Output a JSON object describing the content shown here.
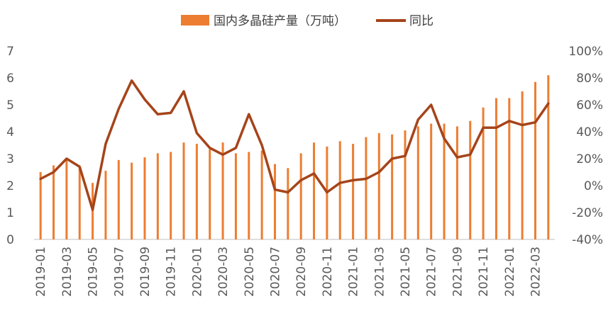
{
  "chart_data": {
    "type": "bar",
    "categories": [
      "2019-01",
      "2019-02",
      "2019-03",
      "2019-04",
      "2019-05",
      "2019-06",
      "2019-07",
      "2019-08",
      "2019-09",
      "2019-10",
      "2019-11",
      "2019-12",
      "2020-01",
      "2020-02",
      "2020-03",
      "2020-04",
      "2020-05",
      "2020-06",
      "2020-07",
      "2020-08",
      "2020-09",
      "2020-10",
      "2020-11",
      "2020-12",
      "2021-01",
      "2021-02",
      "2021-03",
      "2021-04",
      "2021-05",
      "2021-06",
      "2021-07",
      "2021-08",
      "2021-09",
      "2021-10",
      "2021-11",
      "2021-12",
      "2022-01",
      "2022-02",
      "2022-03",
      "2022-04"
    ],
    "x_tick_labels": [
      "2019-01",
      "2019-03",
      "2019-05",
      "2019-07",
      "2019-09",
      "2019-11",
      "2020-01",
      "2020-03",
      "2020-05",
      "2020-07",
      "2020-09",
      "2020-11",
      "2021-01",
      "2021-03",
      "2021-05",
      "2021-07",
      "2021-09",
      "2021-11",
      "2022-01",
      "2022-03"
    ],
    "series": [
      {
        "name": "国内多晶硅产量（万吨）",
        "type": "bar",
        "axis": "left",
        "color": "#ED7D31",
        "values": [
          2.5,
          2.75,
          3.0,
          2.7,
          2.1,
          2.55,
          2.95,
          2.85,
          3.05,
          3.2,
          3.25,
          3.6,
          3.55,
          3.35,
          3.6,
          3.2,
          3.25,
          3.3,
          2.8,
          2.65,
          3.2,
          3.6,
          3.45,
          3.65,
          3.55,
          3.8,
          3.95,
          3.9,
          4.05,
          4.2,
          4.3,
          4.3,
          4.2,
          4.4,
          4.9,
          5.25,
          5.25,
          5.5,
          5.85,
          6.1
        ]
      },
      {
        "name": "同比",
        "type": "line",
        "axis": "right",
        "color": "#A5441A",
        "values": [
          5,
          10,
          20,
          14,
          -18,
          31,
          57,
          78,
          64,
          53,
          54,
          70,
          39,
          28,
          23,
          28,
          53,
          30,
          -3,
          -5,
          4,
          9,
          -5,
          2,
          4,
          5,
          10,
          20,
          22,
          49,
          60,
          35,
          21,
          23,
          43,
          43,
          48,
          45,
          47,
          61
        ]
      }
    ],
    "y_left": {
      "ticks": [
        "0",
        "1",
        "2",
        "3",
        "4",
        "5",
        "6",
        "7"
      ],
      "lim": [
        0,
        7
      ]
    },
    "y_right": {
      "ticks": [
        "-40%",
        "-20%",
        "0%",
        "20%",
        "40%",
        "60%",
        "80%",
        "100%"
      ],
      "lim": [
        -40,
        100
      ]
    },
    "legend_position": "top",
    "grid": false
  }
}
